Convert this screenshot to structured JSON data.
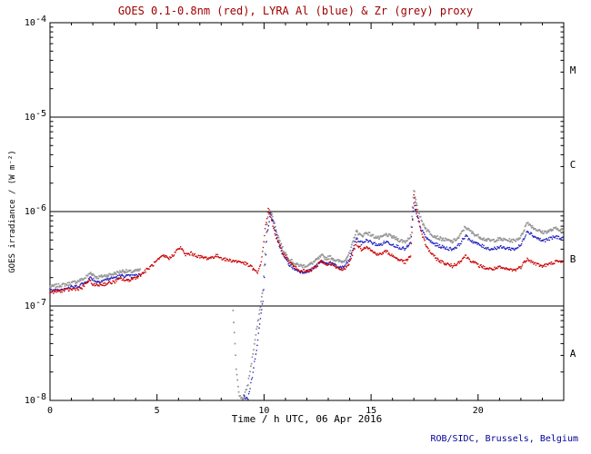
{
  "credit": "ROB/SIDC, Brussels, Belgium",
  "colors": {
    "title": "#a00000",
    "credit": "#000099",
    "axis": "#000000",
    "goes_red": "#cc0000",
    "lyra_al_blue": "#2222bb",
    "lyra_zr_grey": "#999999"
  },
  "chart_data": {
    "type": "scatter",
    "title": "GOES 0.1-0.8nm (red), LYRA Al (blue) & Zr (grey) proxy",
    "xlabel": "Time / h UTC, 06 Apr 2016",
    "ylabel": "GOES irradiance / (W m⁻²)",
    "x_range": [
      0,
      24
    ],
    "x_major_ticks": [
      0,
      5,
      10,
      15,
      20
    ],
    "x_tick_labels": [
      "0",
      "5",
      "10",
      "15",
      "20"
    ],
    "x_minor_step": 1,
    "y_scale": "log",
    "y_range_exp": [
      -8,
      -4
    ],
    "y_tick_exponents": [
      -4,
      -5,
      -6,
      -7,
      -8
    ],
    "class_boundaries_exp": [
      -5,
      -6,
      -7
    ],
    "flare_classes": [
      "M",
      "C",
      "B",
      "A"
    ],
    "grid": "class-boundary horizontal lines only",
    "legend": "encoded in title colors",
    "series": [
      {
        "name": "LYRA Zr proxy",
        "color": "#999999",
        "r": 1.0,
        "segments": [
          [
            [
              0,
              1.6e-07
            ],
            [
              0.4,
              1.65e-07
            ],
            [
              0.8,
              1.7e-07
            ],
            [
              1.2,
              1.8e-07
            ],
            [
              1.6,
              1.95e-07
            ],
            [
              1.9,
              2.25e-07
            ],
            [
              2.2,
              2e-07
            ],
            [
              2.6,
              2.1e-07
            ],
            [
              3.0,
              2.2e-07
            ],
            [
              3.4,
              2.35e-07
            ],
            [
              3.8,
              2.3e-07
            ],
            [
              4.25,
              2.4e-07
            ]
          ],
          [
            [
              8.55,
              9e-08
            ],
            [
              8.7,
              2.2e-08
            ],
            [
              8.85,
              1.1e-08
            ],
            [
              9.05,
              1.05e-08
            ],
            [
              9.25,
              1.5e-08
            ],
            [
              9.45,
              2.8e-08
            ],
            [
              9.65,
              5.5e-08
            ],
            [
              9.8,
              9e-08
            ],
            [
              9.95,
              1.5e-07
            ],
            [
              10.05,
              3.6e-07
            ],
            [
              10.15,
              7.5e-07
            ],
            [
              10.25,
              1.08e-06
            ],
            [
              10.4,
              8.8e-07
            ],
            [
              10.65,
              5.5e-07
            ],
            [
              10.9,
              3.9e-07
            ],
            [
              11.2,
              3.1e-07
            ],
            [
              11.5,
              2.75e-07
            ],
            [
              11.8,
              2.65e-07
            ],
            [
              12.1,
              2.7e-07
            ],
            [
              12.4,
              3e-07
            ],
            [
              12.7,
              3.4e-07
            ],
            [
              12.9,
              3.2e-07
            ],
            [
              13.1,
              3.3e-07
            ],
            [
              13.4,
              3e-07
            ],
            [
              13.7,
              2.95e-07
            ],
            [
              14.0,
              3.6e-07
            ],
            [
              14.3,
              6.2e-07
            ],
            [
              14.55,
              5.5e-07
            ],
            [
              14.8,
              6e-07
            ],
            [
              15.1,
              5.5e-07
            ],
            [
              15.4,
              5.2e-07
            ],
            [
              15.7,
              5.7e-07
            ],
            [
              16.0,
              5.4e-07
            ],
            [
              16.3,
              5e-07
            ],
            [
              16.6,
              4.8e-07
            ],
            [
              16.85,
              5.5e-07
            ],
            [
              17.0,
              1.7e-06
            ],
            [
              17.15,
              1.15e-06
            ],
            [
              17.35,
              8e-07
            ],
            [
              17.6,
              6.4e-07
            ],
            [
              17.9,
              5.6e-07
            ],
            [
              18.2,
              5.2e-07
            ],
            [
              18.5,
              5e-07
            ],
            [
              18.8,
              4.8e-07
            ],
            [
              19.1,
              5.3e-07
            ],
            [
              19.4,
              6.9e-07
            ],
            [
              19.7,
              6e-07
            ],
            [
              20.0,
              5.5e-07
            ],
            [
              20.3,
              5.1e-07
            ],
            [
              20.6,
              4.9e-07
            ],
            [
              21.0,
              5.1e-07
            ],
            [
              21.3,
              5e-07
            ],
            [
              21.7,
              4.9e-07
            ],
            [
              22.0,
              5.4e-07
            ],
            [
              22.3,
              7.7e-07
            ],
            [
              22.6,
              6.7e-07
            ],
            [
              23.0,
              6e-07
            ],
            [
              23.3,
              6.2e-07
            ],
            [
              23.6,
              6.6e-07
            ],
            [
              24.0,
              6.4e-07
            ]
          ]
        ]
      },
      {
        "name": "LYRA Al proxy",
        "color": "#2222bb",
        "r": 0.8,
        "segments": [
          [
            [
              0,
              1.45e-07
            ],
            [
              0.4,
              1.5e-07
            ],
            [
              0.8,
              1.55e-07
            ],
            [
              1.2,
              1.6e-07
            ],
            [
              1.6,
              1.75e-07
            ],
            [
              1.9,
              2e-07
            ],
            [
              2.2,
              1.8e-07
            ],
            [
              2.6,
              1.9e-07
            ],
            [
              3.0,
              2e-07
            ],
            [
              3.4,
              2.1e-07
            ],
            [
              3.8,
              2.05e-07
            ],
            [
              4.25,
              2.15e-07
            ]
          ],
          [
            [
              9.05,
              1.1e-08
            ],
            [
              9.25,
              1.05e-08
            ],
            [
              9.45,
              1.8e-08
            ],
            [
              9.65,
              3.5e-08
            ],
            [
              9.8,
              6.5e-08
            ],
            [
              9.95,
              1.15e-07
            ],
            [
              10.05,
              2.8e-07
            ],
            [
              10.15,
              6e-07
            ],
            [
              10.3,
              9.5e-07
            ],
            [
              10.45,
              7.5e-07
            ],
            [
              10.65,
              4.8e-07
            ],
            [
              10.9,
              3.4e-07
            ],
            [
              11.2,
              2.7e-07
            ],
            [
              11.5,
              2.4e-07
            ],
            [
              11.8,
              2.3e-07
            ],
            [
              12.1,
              2.35e-07
            ],
            [
              12.4,
              2.6e-07
            ],
            [
              12.7,
              2.95e-07
            ],
            [
              12.9,
              2.8e-07
            ],
            [
              13.1,
              2.9e-07
            ],
            [
              13.4,
              2.6e-07
            ],
            [
              13.7,
              2.55e-07
            ],
            [
              14.0,
              3.1e-07
            ],
            [
              14.3,
              5.2e-07
            ],
            [
              14.55,
              4.6e-07
            ],
            [
              14.8,
              5e-07
            ],
            [
              15.1,
              4.6e-07
            ],
            [
              15.4,
              4.4e-07
            ],
            [
              15.7,
              4.8e-07
            ],
            [
              16.0,
              4.5e-07
            ],
            [
              16.3,
              4.2e-07
            ],
            [
              16.6,
              4e-07
            ],
            [
              16.85,
              4.6e-07
            ],
            [
              17.0,
              1.2e-06
            ],
            [
              17.15,
              8.8e-07
            ],
            [
              17.35,
              6.4e-07
            ],
            [
              17.6,
              5.2e-07
            ],
            [
              17.9,
              4.6e-07
            ],
            [
              18.2,
              4.3e-07
            ],
            [
              18.5,
              4.1e-07
            ],
            [
              18.8,
              4e-07
            ],
            [
              19.1,
              4.4e-07
            ],
            [
              19.4,
              5.5e-07
            ],
            [
              19.7,
              4.9e-07
            ],
            [
              20.0,
              4.5e-07
            ],
            [
              20.3,
              4.2e-07
            ],
            [
              20.6,
              4e-07
            ],
            [
              21.0,
              4.2e-07
            ],
            [
              21.3,
              4.1e-07
            ],
            [
              21.7,
              4e-07
            ],
            [
              22.0,
              4.4e-07
            ],
            [
              22.3,
              6.3e-07
            ],
            [
              22.6,
              5.5e-07
            ],
            [
              23.0,
              4.9e-07
            ],
            [
              23.3,
              5.1e-07
            ],
            [
              23.6,
              5.4e-07
            ],
            [
              24.0,
              5.2e-07
            ]
          ]
        ]
      },
      {
        "name": "GOES 0.1-0.8nm",
        "color": "#cc0000",
        "r": 0.8,
        "segments": [
          [
            [
              0,
              1.4e-07
            ],
            [
              0.5,
              1.45e-07
            ],
            [
              1.0,
              1.5e-07
            ],
            [
              1.5,
              1.55e-07
            ],
            [
              1.8,
              1.85e-07
            ],
            [
              2.1,
              1.65e-07
            ],
            [
              2.5,
              1.7e-07
            ],
            [
              3.0,
              1.8e-07
            ],
            [
              3.3,
              1.95e-07
            ],
            [
              3.6,
              1.85e-07
            ],
            [
              4.0,
              2e-07
            ],
            [
              4.3,
              2.2e-07
            ],
            [
              4.7,
              2.6e-07
            ],
            [
              5.0,
              3e-07
            ],
            [
              5.3,
              3.4e-07
            ],
            [
              5.6,
              3.2e-07
            ],
            [
              5.9,
              3.8e-07
            ],
            [
              6.1,
              4.2e-07
            ],
            [
              6.3,
              3.5e-07
            ],
            [
              6.6,
              3.6e-07
            ],
            [
              7.0,
              3.3e-07
            ],
            [
              7.4,
              3.2e-07
            ],
            [
              7.8,
              3.4e-07
            ],
            [
              8.2,
              3.1e-07
            ],
            [
              8.6,
              3e-07
            ],
            [
              9.0,
              2.9e-07
            ],
            [
              9.4,
              2.6e-07
            ],
            [
              9.7,
              2.2e-07
            ],
            [
              9.9,
              3.2e-07
            ],
            [
              10.05,
              6.5e-07
            ],
            [
              10.2,
              1.05e-06
            ],
            [
              10.35,
              8.2e-07
            ],
            [
              10.6,
              5e-07
            ],
            [
              10.9,
              3.6e-07
            ],
            [
              11.2,
              2.9e-07
            ],
            [
              11.5,
              2.5e-07
            ],
            [
              11.8,
              2.35e-07
            ],
            [
              12.1,
              2.3e-07
            ],
            [
              12.4,
              2.6e-07
            ],
            [
              12.7,
              3e-07
            ],
            [
              12.9,
              2.75e-07
            ],
            [
              13.1,
              2.85e-07
            ],
            [
              13.4,
              2.5e-07
            ],
            [
              13.7,
              2.4e-07
            ],
            [
              14.0,
              2.9e-07
            ],
            [
              14.3,
              4.6e-07
            ],
            [
              14.55,
              4e-07
            ],
            [
              14.8,
              4.3e-07
            ],
            [
              15.1,
              3.7e-07
            ],
            [
              15.4,
              3.5e-07
            ],
            [
              15.7,
              3.8e-07
            ],
            [
              16.0,
              3.4e-07
            ],
            [
              16.3,
              3.1e-07
            ],
            [
              16.6,
              2.9e-07
            ],
            [
              16.85,
              3.4e-07
            ],
            [
              17.0,
              1.45e-06
            ],
            [
              17.15,
              1e-06
            ],
            [
              17.35,
              6e-07
            ],
            [
              17.6,
              4.2e-07
            ],
            [
              17.9,
              3.4e-07
            ],
            [
              18.2,
              3e-07
            ],
            [
              18.5,
              2.8e-07
            ],
            [
              18.8,
              2.65e-07
            ],
            [
              19.1,
              2.9e-07
            ],
            [
              19.4,
              3.4e-07
            ],
            [
              19.7,
              3e-07
            ],
            [
              20.0,
              2.7e-07
            ],
            [
              20.3,
              2.55e-07
            ],
            [
              20.6,
              2.45e-07
            ],
            [
              21.0,
              2.55e-07
            ],
            [
              21.3,
              2.45e-07
            ],
            [
              21.7,
              2.4e-07
            ],
            [
              22.0,
              2.6e-07
            ],
            [
              22.3,
              3.2e-07
            ],
            [
              22.6,
              2.85e-07
            ],
            [
              23.0,
              2.65e-07
            ],
            [
              23.3,
              2.75e-07
            ],
            [
              23.6,
              2.95e-07
            ],
            [
              24.0,
              2.9e-07
            ]
          ]
        ]
      }
    ]
  }
}
